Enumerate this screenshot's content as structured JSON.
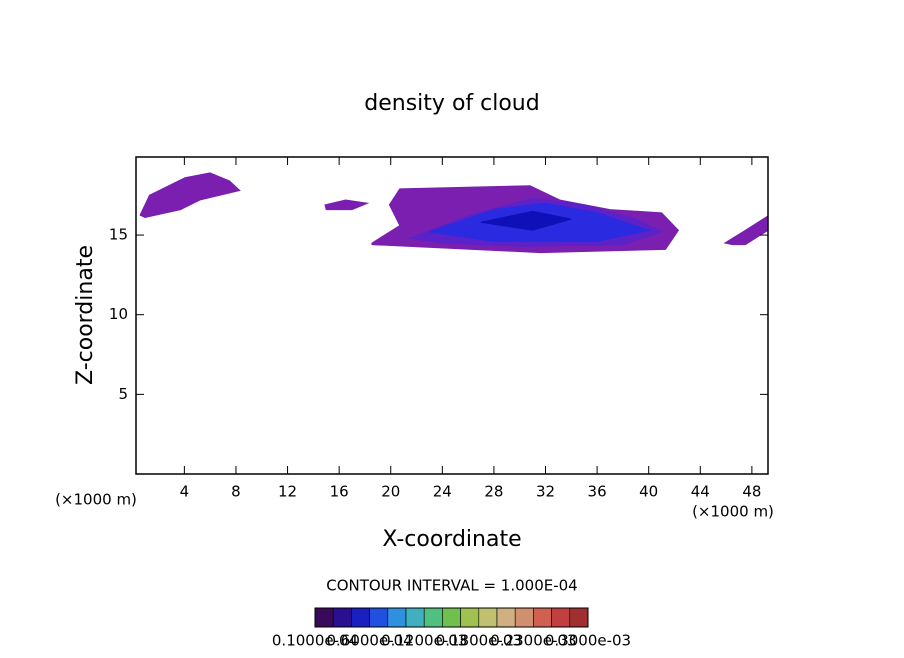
{
  "chart_data": {
    "type": "contour",
    "title": "density of cloud",
    "x_label": "X-coordinate",
    "y_label": "Z-coordinate",
    "x_unit": "(×1000 m)",
    "y_unit": "(×1000 m)",
    "xlim": [
      0.25,
      49.25
    ],
    "ylim": [
      0,
      19.9
    ],
    "xticks": [
      4,
      8,
      12,
      16,
      20,
      24,
      28,
      32,
      36,
      40,
      44,
      48
    ],
    "yticks": [
      5,
      10,
      15
    ],
    "annotation": "CONTOUR INTERVAL = 1.000E-04",
    "regions": [
      {
        "color": "#7a1fb0",
        "x": [
          18.55,
          20.7,
          19.9,
          20.7,
          30.8,
          33.1,
          37,
          41,
          42.3,
          41.3,
          31.6,
          18.55
        ],
        "z": [
          14.5,
          15.6,
          16.9,
          17.9,
          18.1,
          17.2,
          16.6,
          16.4,
          15.3,
          14.1,
          13.9,
          14.4
        ]
      },
      {
        "color": "#5a22c8",
        "x": [
          21.5,
          26,
          31,
          35,
          39,
          41,
          38,
          30,
          24
        ],
        "z": [
          14.8,
          16.2,
          17.3,
          16.9,
          16,
          15.2,
          14.4,
          14.3,
          14.5
        ]
      },
      {
        "color": "#2a2ae0",
        "x": [
          23,
          28,
          32,
          36,
          40,
          36,
          28
        ],
        "z": [
          15.2,
          16.6,
          17,
          16.4,
          15.3,
          14.6,
          14.6
        ]
      },
      {
        "color": "#1010b8",
        "x": [
          27,
          31,
          34,
          31
        ],
        "z": [
          15.8,
          16.5,
          16,
          15.3
        ]
      },
      {
        "color": "#7a1fb0",
        "x": [
          0.57,
          1.3,
          4.05,
          5.99,
          7.5,
          8.3,
          5.2,
          3.7,
          0.95
        ],
        "z": [
          16.25,
          17.5,
          18.6,
          18.9,
          18.4,
          17.8,
          17.2,
          16.6,
          16.1
        ]
      },
      {
        "color": "#7a1fb0",
        "x": [
          14.9,
          16.5,
          18.2,
          17,
          15
        ],
        "z": [
          16.9,
          17.2,
          17,
          16.6,
          16.6
        ]
      },
      {
        "color": "#7a1fb0",
        "x": [
          45.9,
          47.5,
          49.25,
          49.25,
          47.5,
          46.5
        ],
        "z": [
          14.5,
          15.3,
          16.2,
          15.3,
          14.4,
          14.4
        ]
      }
    ],
    "colorbar": {
      "colors": [
        "#3a0a5a",
        "#2a1090",
        "#1a20c0",
        "#2050e0",
        "#3090e0",
        "#40b0c0",
        "#50c080",
        "#70c050",
        "#a0c050",
        "#c0c070",
        "#d0b080",
        "#d09070",
        "#d06050",
        "#c04040",
        "#a03030"
      ],
      "labels": [
        "0.1000e-04",
        "0.6000e-04",
        "0.1200e-03",
        "0.1800e-03",
        "0.2300e-03",
        "0.3000e-03"
      ]
    }
  }
}
